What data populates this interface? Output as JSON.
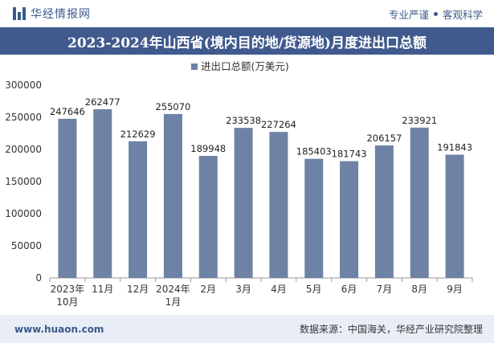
{
  "header": {
    "brand": "华经情报网",
    "tag1": "专业严谨",
    "tag2": "客观科学"
  },
  "title": "2023-2024年山西省(境内目的地/货源地)月度进出口总额",
  "legend_label": "进出口总额(万美元)",
  "footer": {
    "url": "www.huaon.com",
    "source": "数据来源：中国海关，华经产业研究院整理"
  },
  "colors": {
    "bar": "#6e82a6",
    "title_bg": "#405a8e",
    "footer_bg": "#e9eef6"
  },
  "chart_data": {
    "type": "bar",
    "categories": [
      "2023年10月",
      "11月",
      "12月",
      "2024年1月",
      "2月",
      "3月",
      "4月",
      "5月",
      "6月",
      "7月",
      "8月",
      "9月"
    ],
    "category_lines": [
      [
        "2023年",
        "10月"
      ],
      [
        "11月"
      ],
      [
        "12月"
      ],
      [
        "2024年",
        "1月"
      ],
      [
        "2月"
      ],
      [
        "3月"
      ],
      [
        "4月"
      ],
      [
        "5月"
      ],
      [
        "6月"
      ],
      [
        "7月"
      ],
      [
        "8月"
      ],
      [
        "9月"
      ]
    ],
    "series": [
      {
        "name": "进出口总额(万美元)",
        "values": [
          247646,
          262477,
          212629,
          255070,
          189948,
          233538,
          227264,
          185403,
          181743,
          206157,
          233921,
          191843
        ]
      }
    ],
    "ylim": [
      0,
      300000
    ],
    "yticks": [
      0,
      50000,
      100000,
      150000,
      200000,
      250000,
      300000
    ],
    "legend_position": "top-center",
    "grid": false
  }
}
